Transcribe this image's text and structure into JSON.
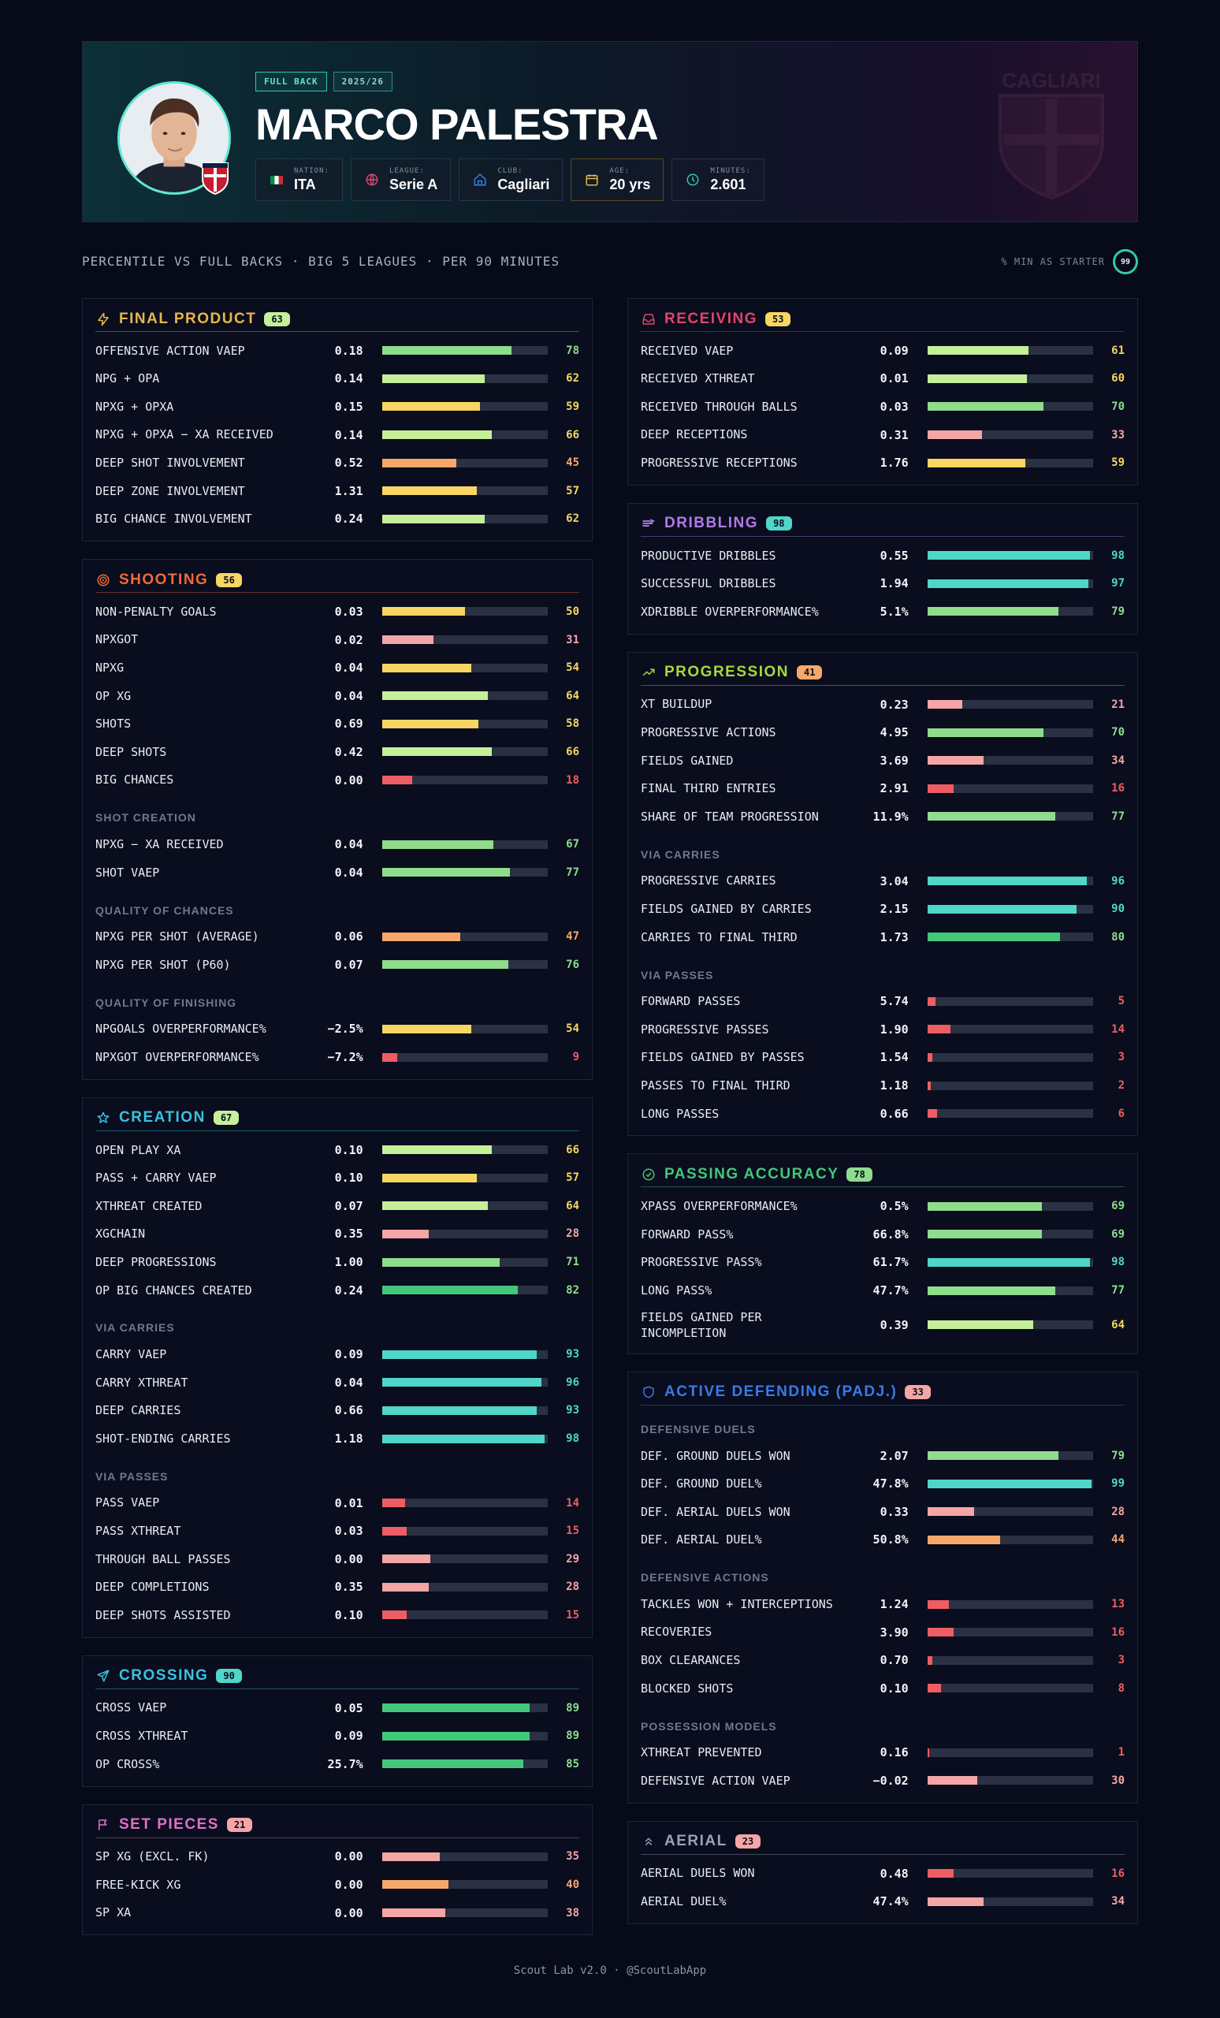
{
  "player": {
    "name": "MARCO PALESTRA",
    "position_tag": "FULL BACK",
    "season_tag": "2025/26",
    "info": [
      {
        "label": "NATION:",
        "value": "ITA",
        "icon": "italy-flag-icon"
      },
      {
        "label": "LEAGUE:",
        "value": "Serie A",
        "icon": "globe-icon"
      },
      {
        "label": "CLUB:",
        "value": "Cagliari",
        "icon": "home-icon"
      },
      {
        "label": "AGE:",
        "value": "20 yrs",
        "icon": "calendar-icon"
      },
      {
        "label": "MINUTES:",
        "value": "2.601",
        "icon": "clock-icon"
      }
    ],
    "watermark_text": "CAGLIARI"
  },
  "subheader": "PERCENTILE VS FULL BACKS · BIG 5 LEAGUES · PER 90 MINUTES",
  "starter": {
    "label": "% MIN AS STARTER",
    "value": "99"
  },
  "colors": {
    "green_light": "#c6ef9a",
    "green": "#8fdc8c",
    "green_strong": "#43c77a",
    "teal": "#4fd6c8",
    "yellow": "#f7d663",
    "orange": "#f5a86a",
    "pink": "#f4a5a5",
    "red": "#ee5d64"
  },
  "sections_left": [
    {
      "id": "final-product",
      "title": "FINAL PRODUCT",
      "badge": "63",
      "color": "#e8b64a",
      "badge_color": "#c6ef9a",
      "icon": "lightning-icon",
      "groups": [
        {
          "title": "",
          "rows": [
            {
              "label": "OFFENSIVE ACTION VAEP",
              "value": "0.18",
              "pct": 78
            },
            {
              "label": "NPG + OPA",
              "value": "0.14",
              "pct": 62
            },
            {
              "label": "NPXG + OPXA",
              "value": "0.15",
              "pct": 59
            },
            {
              "label": "NPXG + OPXA − XA RECEIVED",
              "value": "0.14",
              "pct": 66
            },
            {
              "label": "DEEP SHOT INVOLVEMENT",
              "value": "0.52",
              "pct": 45
            },
            {
              "label": "DEEP ZONE INVOLVEMENT",
              "value": "1.31",
              "pct": 57
            },
            {
              "label": "BIG CHANCE INVOLVEMENT",
              "value": "0.24",
              "pct": 62
            }
          ]
        }
      ]
    },
    {
      "id": "shooting",
      "title": "SHOOTING",
      "badge": "56",
      "color": "#f06a3c",
      "badge_color": "#f7d663",
      "icon": "target-icon",
      "groups": [
        {
          "title": "",
          "rows": [
            {
              "label": "NON-PENALTY GOALS",
              "value": "0.03",
              "pct": 50
            },
            {
              "label": "NPXGOT",
              "value": "0.02",
              "pct": 31
            },
            {
              "label": "NPXG",
              "value": "0.04",
              "pct": 54
            },
            {
              "label": "OP XG",
              "value": "0.04",
              "pct": 64
            },
            {
              "label": "SHOTS",
              "value": "0.69",
              "pct": 58
            },
            {
              "label": "DEEP SHOTS",
              "value": "0.42",
              "pct": 66
            },
            {
              "label": "BIG CHANCES",
              "value": "0.00",
              "pct": 18
            }
          ]
        },
        {
          "title": "SHOT CREATION",
          "rows": [
            {
              "label": "NPXG − XA RECEIVED",
              "value": "0.04",
              "pct": 67
            },
            {
              "label": "SHOT VAEP",
              "value": "0.04",
              "pct": 77
            }
          ]
        },
        {
          "title": "QUALITY OF CHANCES",
          "rows": [
            {
              "label": "NPXG PER SHOT (AVERAGE)",
              "value": "0.06",
              "pct": 47
            },
            {
              "label": "NPXG PER SHOT (P60)",
              "value": "0.07",
              "pct": 76
            }
          ]
        },
        {
          "title": "QUALITY OF FINISHING",
          "rows": [
            {
              "label": "NPGOALS OVERPERFORMANCE%",
              "value": "−2.5%",
              "pct": 54
            },
            {
              "label": "NPXGOT OVERPERFORMANCE%",
              "value": "−7.2%",
              "pct": 9
            }
          ]
        }
      ]
    },
    {
      "id": "creation",
      "title": "CREATION",
      "badge": "67",
      "color": "#3ac2e0",
      "badge_color": "#c6ef9a",
      "icon": "star-icon",
      "groups": [
        {
          "title": "",
          "rows": [
            {
              "label": "OPEN PLAY XA",
              "value": "0.10",
              "pct": 66
            },
            {
              "label": "PASS + CARRY VAEP",
              "value": "0.10",
              "pct": 57
            },
            {
              "label": "XTHREAT CREATED",
              "value": "0.07",
              "pct": 64
            },
            {
              "label": "XGCHAIN",
              "value": "0.35",
              "pct": 28
            },
            {
              "label": "DEEP PROGRESSIONS",
              "value": "1.00",
              "pct": 71
            },
            {
              "label": "OP BIG CHANCES CREATED",
              "value": "0.24",
              "pct": 82
            }
          ]
        },
        {
          "title": "VIA CARRIES",
          "rows": [
            {
              "label": "CARRY VAEP",
              "value": "0.09",
              "pct": 93
            },
            {
              "label": "CARRY XTHREAT",
              "value": "0.04",
              "pct": 96
            },
            {
              "label": "DEEP CARRIES",
              "value": "0.66",
              "pct": 93
            },
            {
              "label": "SHOT-ENDING CARRIES",
              "value": "1.18",
              "pct": 98
            }
          ]
        },
        {
          "title": "VIA PASSES",
          "rows": [
            {
              "label": "PASS VAEP",
              "value": "0.01",
              "pct": 14
            },
            {
              "label": "PASS XTHREAT",
              "value": "0.03",
              "pct": 15
            },
            {
              "label": "THROUGH BALL PASSES",
              "value": "0.00",
              "pct": 29
            },
            {
              "label": "DEEP COMPLETIONS",
              "value": "0.35",
              "pct": 28
            },
            {
              "label": "DEEP SHOTS ASSISTED",
              "value": "0.10",
              "pct": 15
            }
          ]
        }
      ]
    },
    {
      "id": "crossing",
      "title": "CROSSING",
      "badge": "90",
      "color": "#3ac2e0",
      "badge_color": "#4fd6c8",
      "icon": "send-icon",
      "groups": [
        {
          "title": "",
          "rows": [
            {
              "label": "CROSS VAEP",
              "value": "0.05",
              "pct": 89
            },
            {
              "label": "CROSS XTHREAT",
              "value": "0.09",
              "pct": 89
            },
            {
              "label": "OP CROSS%",
              "value": "25.7%",
              "pct": 85
            }
          ]
        }
      ]
    },
    {
      "id": "set-pieces",
      "title": "SET PIECES",
      "badge": "21",
      "color": "#e070c8",
      "badge_color": "#f4a5a5",
      "icon": "flag-icon",
      "groups": [
        {
          "title": "",
          "rows": [
            {
              "label": "SP XG (EXCL. FK)",
              "value": "0.00",
              "pct": 35
            },
            {
              "label": "FREE-KICK XG",
              "value": "0.00",
              "pct": 40
            },
            {
              "label": "SP XA",
              "value": "0.00",
              "pct": 38
            }
          ]
        }
      ]
    }
  ],
  "sections_right": [
    {
      "id": "receiving",
      "title": "RECEIVING",
      "badge": "53",
      "color": "#e0456a",
      "badge_color": "#f7d663",
      "icon": "inbox-icon",
      "groups": [
        {
          "title": "",
          "rows": [
            {
              "label": "RECEIVED VAEP",
              "value": "0.09",
              "pct": 61
            },
            {
              "label": "RECEIVED XTHREAT",
              "value": "0.01",
              "pct": 60
            },
            {
              "label": "RECEIVED THROUGH BALLS",
              "value": "0.03",
              "pct": 70
            },
            {
              "label": "DEEP RECEPTIONS",
              "value": "0.31",
              "pct": 33
            },
            {
              "label": "PROGRESSIVE RECEPTIONS",
              "value": "1.76",
              "pct": 59
            }
          ]
        }
      ]
    },
    {
      "id": "dribbling",
      "title": "DRIBBLING",
      "badge": "98",
      "color": "#b07ae8",
      "badge_color": "#4fd6c8",
      "icon": "dribble-icon",
      "groups": [
        {
          "title": "",
          "rows": [
            {
              "label": "PRODUCTIVE DRIBBLES",
              "value": "0.55",
              "pct": 98
            },
            {
              "label": "SUCCESSFUL DRIBBLES",
              "value": "1.94",
              "pct": 97
            },
            {
              "label": "XDRIBBLE OVERPERFORMANCE%",
              "value": "5.1%",
              "pct": 79
            }
          ]
        }
      ]
    },
    {
      "id": "progression",
      "title": "PROGRESSION",
      "badge": "41",
      "color": "#a8d83a",
      "badge_color": "#f5a86a",
      "icon": "trending-up-icon",
      "groups": [
        {
          "title": "",
          "rows": [
            {
              "label": "XT BUILDUP",
              "value": "0.23",
              "pct": 21
            },
            {
              "label": "PROGRESSIVE ACTIONS",
              "value": "4.95",
              "pct": 70
            },
            {
              "label": "FIELDS GAINED",
              "value": "3.69",
              "pct": 34
            },
            {
              "label": "FINAL THIRD ENTRIES",
              "value": "2.91",
              "pct": 16
            },
            {
              "label": "SHARE OF TEAM PROGRESSION",
              "value": "11.9%",
              "pct": 77
            }
          ]
        },
        {
          "title": "VIA CARRIES",
          "rows": [
            {
              "label": "PROGRESSIVE CARRIES",
              "value": "3.04",
              "pct": 96
            },
            {
              "label": "FIELDS GAINED BY CARRIES",
              "value": "2.15",
              "pct": 90
            },
            {
              "label": "CARRIES TO FINAL THIRD",
              "value": "1.73",
              "pct": 80
            }
          ]
        },
        {
          "title": "VIA PASSES",
          "rows": [
            {
              "label": "FORWARD PASSES",
              "value": "5.74",
              "pct": 5
            },
            {
              "label": "PROGRESSIVE PASSES",
              "value": "1.90",
              "pct": 14
            },
            {
              "label": "FIELDS GAINED BY PASSES",
              "value": "1.54",
              "pct": 3
            },
            {
              "label": "PASSES TO FINAL THIRD",
              "value": "1.18",
              "pct": 2
            },
            {
              "label": "LONG PASSES",
              "value": "0.66",
              "pct": 6
            }
          ]
        }
      ]
    },
    {
      "id": "passing-accuracy",
      "title": "PASSING ACCURACY",
      "badge": "78",
      "color": "#43c77a",
      "badge_color": "#8fdc8c",
      "icon": "check-circle-icon",
      "groups": [
        {
          "title": "",
          "rows": [
            {
              "label": "XPASS OVERPERFORMANCE%",
              "value": "0.5%",
              "pct": 69
            },
            {
              "label": "FORWARD PASS%",
              "value": "66.8%",
              "pct": 69
            },
            {
              "label": "PROGRESSIVE PASS%",
              "value": "61.7%",
              "pct": 98
            },
            {
              "label": "LONG PASS%",
              "value": "47.7%",
              "pct": 77
            },
            {
              "label": "FIELDS GAINED PER INCOMPLETION",
              "value": "0.39",
              "pct": 64,
              "tall": true
            }
          ]
        }
      ]
    },
    {
      "id": "active-defending",
      "title": "ACTIVE DEFENDING (PADJ.)",
      "badge": "33",
      "color": "#3a7ae8",
      "badge_color": "#f4a5a5",
      "icon": "shield-icon",
      "groups": [
        {
          "title": "DEFENSIVE DUELS",
          "rows": [
            {
              "label": "DEF. GROUND DUELS WON",
              "value": "2.07",
              "pct": 79
            },
            {
              "label": "DEF. GROUND DUEL%",
              "value": "47.8%",
              "pct": 99
            },
            {
              "label": "DEF. AERIAL DUELS WON",
              "value": "0.33",
              "pct": 28
            },
            {
              "label": "DEF. AERIAL DUEL%",
              "value": "50.8%",
              "pct": 44
            }
          ]
        },
        {
          "title": "DEFENSIVE ACTIONS",
          "rows": [
            {
              "label": "TACKLES WON + INTERCEPTIONS",
              "value": "1.24",
              "pct": 13
            },
            {
              "label": "RECOVERIES",
              "value": "3.90",
              "pct": 16
            },
            {
              "label": "BOX CLEARANCES",
              "value": "0.70",
              "pct": 3
            },
            {
              "label": "BLOCKED SHOTS",
              "value": "0.10",
              "pct": 8
            }
          ]
        },
        {
          "title": "POSSESSION MODELS",
          "rows": [
            {
              "label": "XTHREAT PREVENTED",
              "value": "0.16",
              "pct": 1
            },
            {
              "label": "DEFENSIVE ACTION VAEP",
              "value": "−0.02",
              "pct": 30
            }
          ]
        }
      ]
    },
    {
      "id": "aerial",
      "title": "AERIAL",
      "badge": "23",
      "color": "#9aa4b4",
      "badge_color": "#f4a5a5",
      "icon": "chevrons-up-icon",
      "groups": [
        {
          "title": "",
          "rows": [
            {
              "label": "AERIAL DUELS WON",
              "value": "0.48",
              "pct": 16
            },
            {
              "label": "AERIAL DUEL%",
              "value": "47.4%",
              "pct": 34
            }
          ]
        }
      ]
    }
  ],
  "footer": "Scout Lab v2.0 · @ScoutLabApp"
}
